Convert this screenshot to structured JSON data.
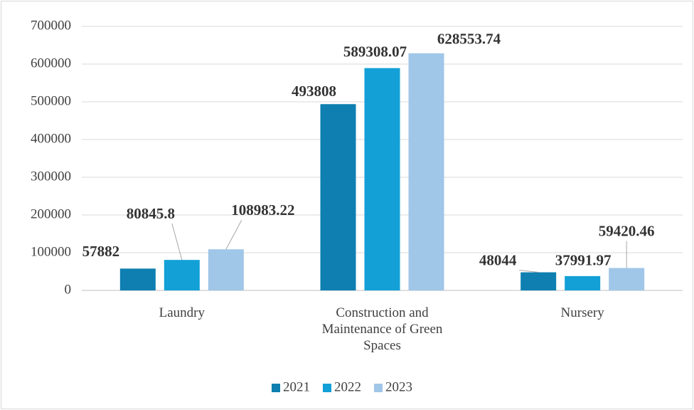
{
  "chart_data": {
    "type": "bar",
    "categories": [
      "Laundry",
      "Construction and Maintenance of Green Spaces",
      "Nursery"
    ],
    "series": [
      {
        "name": "2021",
        "color": "#0e7fb0",
        "values": [
          57882,
          493808,
          48044
        ]
      },
      {
        "name": "2022",
        "color": "#12a0d7",
        "values": [
          80845.8,
          589308.07,
          37991.97
        ]
      },
      {
        "name": "2023",
        "color": "#a0c6e8",
        "values": [
          108983.22,
          628553.74,
          59420.46
        ]
      }
    ],
    "ylim": [
      0,
      700000
    ],
    "yticks": [
      0,
      100000,
      200000,
      300000,
      400000,
      500000,
      600000,
      700000
    ],
    "grid": true,
    "legend": "bottom"
  }
}
